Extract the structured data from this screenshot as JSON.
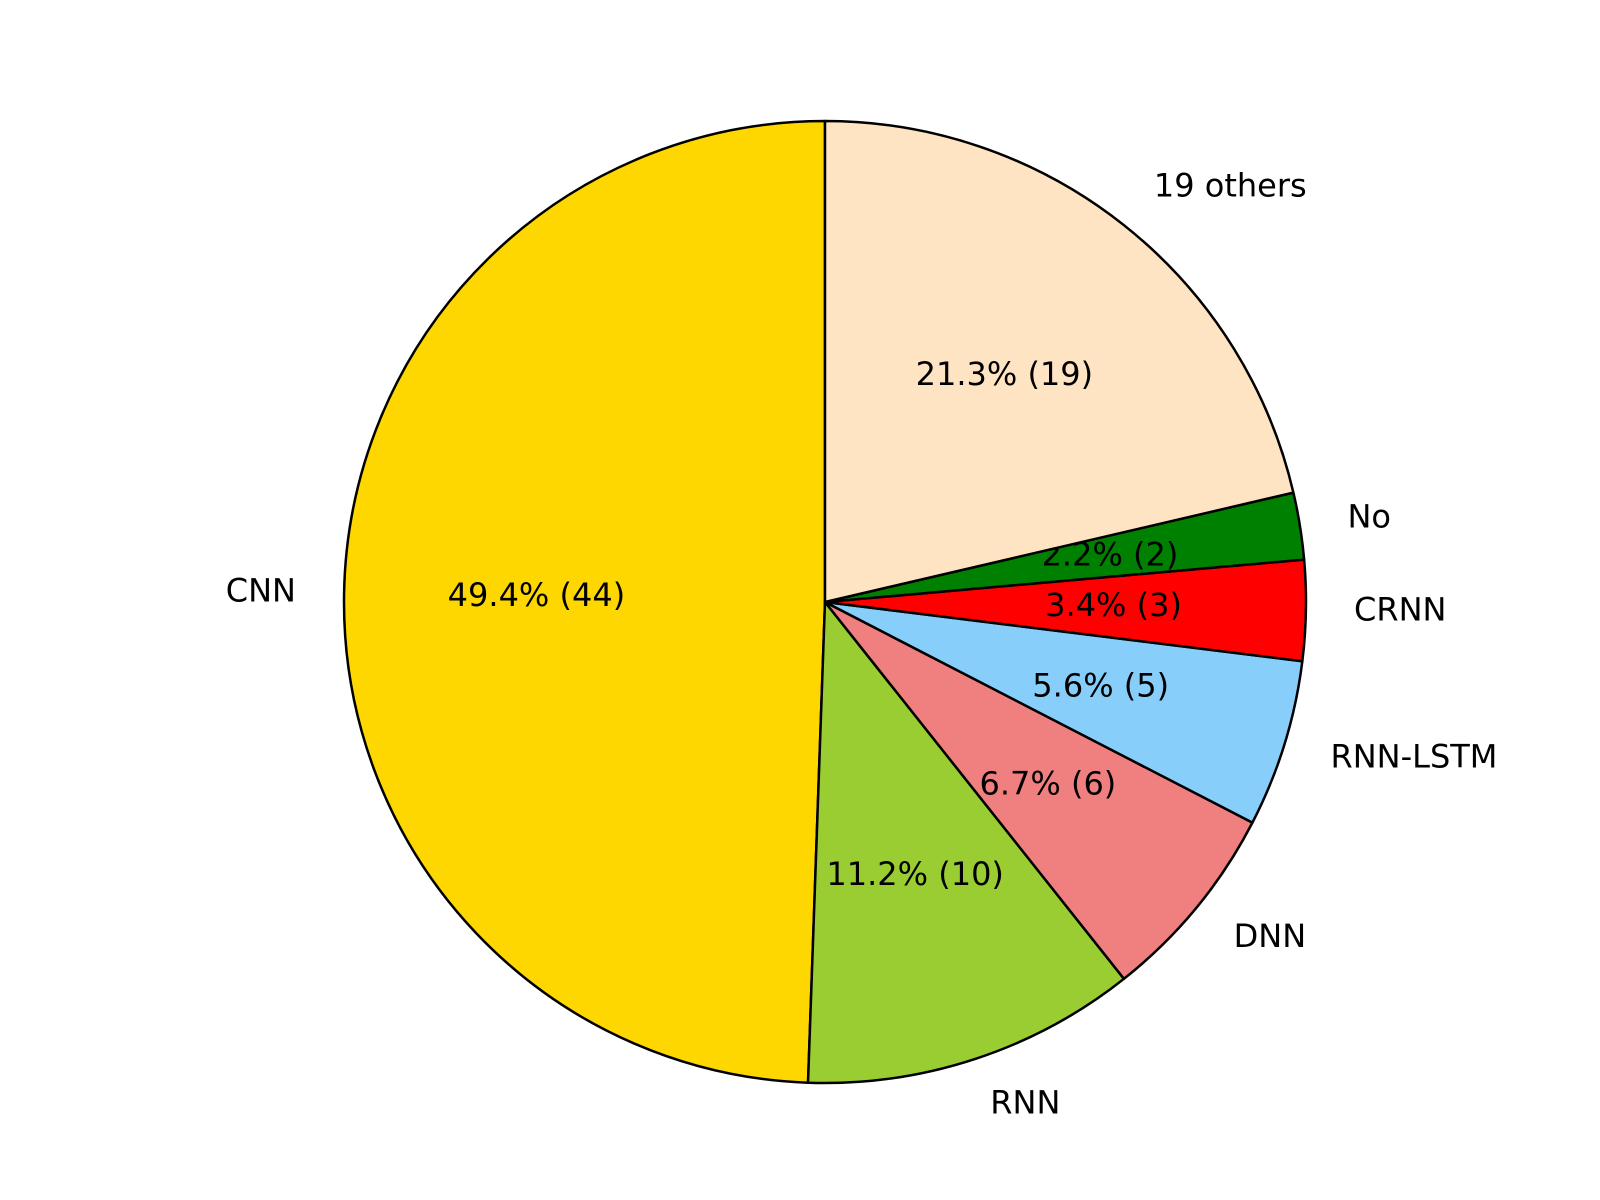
{
  "chart_data": {
    "type": "pie",
    "categories": [
      "CNN",
      "RNN",
      "DNN",
      "RNN-LSTM",
      "CRNN",
      "No",
      "19 others"
    ],
    "values": [
      44,
      10,
      6,
      5,
      3,
      2,
      19
    ],
    "value_labels": [
      "49.4%  (44)",
      "11.2%  (10)",
      "6.7%  (6)",
      "5.6%  (5)",
      "3.4%  (3)",
      "2.2%  (2)",
      "21.3%  (19)"
    ],
    "colors": [
      "#ffd700",
      "#9acd32",
      "#f08080",
      "#87cefa",
      "#ff0000",
      "#008000",
      "#ffe4c4"
    ]
  }
}
